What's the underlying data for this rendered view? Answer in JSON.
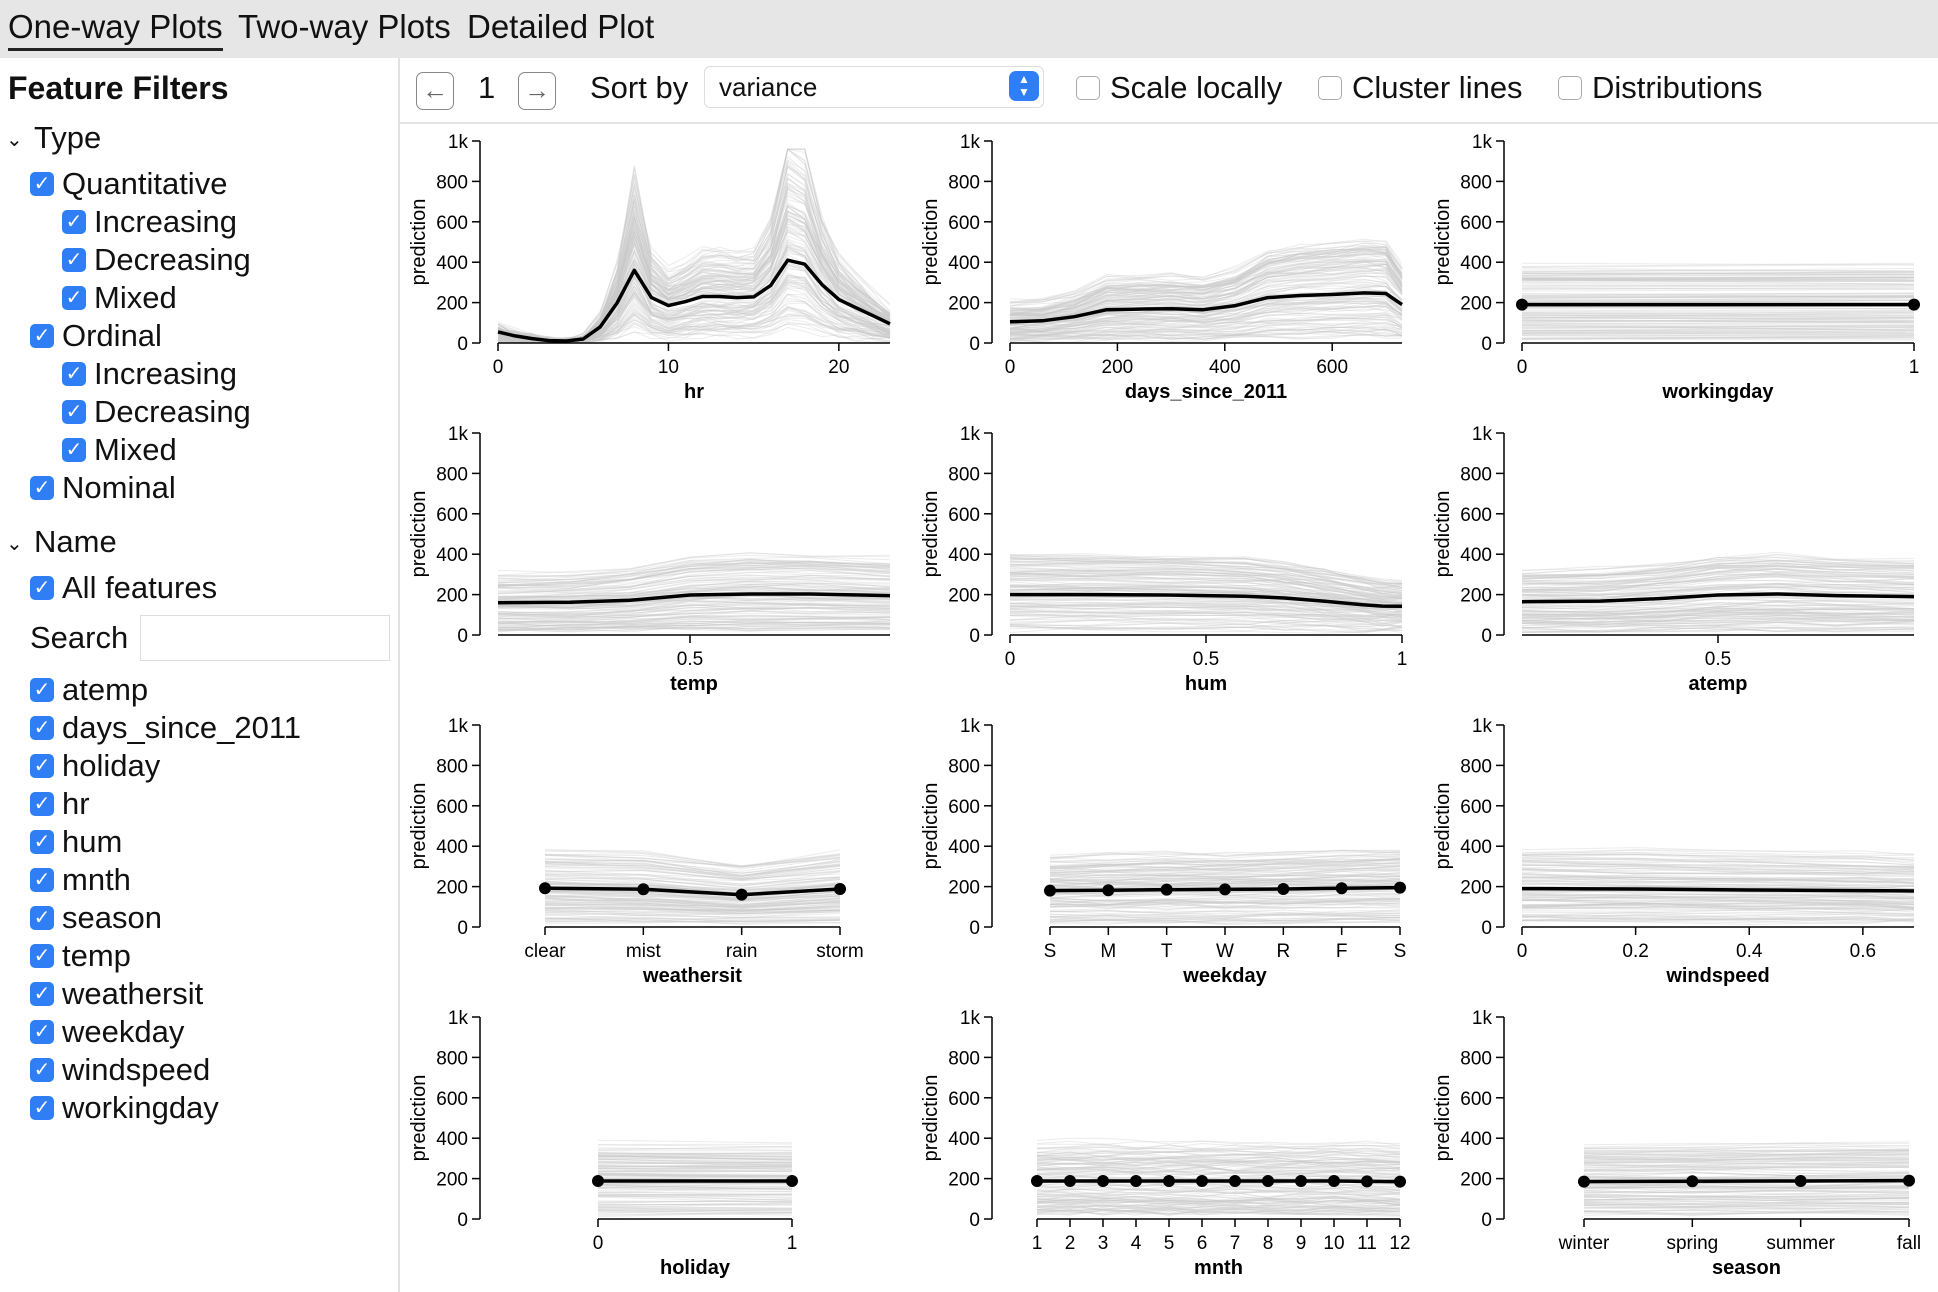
{
  "tabs": [
    {
      "label": "One-way Plots",
      "active": true
    },
    {
      "label": "Two-way Plots",
      "active": false
    },
    {
      "label": "Detailed Plot",
      "active": false
    }
  ],
  "sidebar": {
    "title": "Feature Filters",
    "type_section": {
      "label": "Type",
      "items": [
        {
          "label": "Quantitative",
          "level": 0,
          "checked": true
        },
        {
          "label": "Increasing",
          "level": 1,
          "checked": true
        },
        {
          "label": "Decreasing",
          "level": 1,
          "checked": true
        },
        {
          "label": "Mixed",
          "level": 1,
          "checked": true
        },
        {
          "label": "Ordinal",
          "level": 0,
          "checked": true
        },
        {
          "label": "Increasing",
          "level": 1,
          "checked": true
        },
        {
          "label": "Decreasing",
          "level": 1,
          "checked": true
        },
        {
          "label": "Mixed",
          "level": 1,
          "checked": true
        },
        {
          "label": "Nominal",
          "level": 0,
          "checked": true
        }
      ]
    },
    "name_section": {
      "label": "Name",
      "all_features_label": "All features",
      "search_label": "Search",
      "search_value": "",
      "features": [
        "atemp",
        "days_since_2011",
        "holiday",
        "hr",
        "hum",
        "mnth",
        "season",
        "temp",
        "weathersit",
        "weekday",
        "windspeed",
        "workingday"
      ]
    }
  },
  "toolbar": {
    "page": "1",
    "sort_label": "Sort by",
    "sort_value": "variance",
    "scale_locally": "Scale locally",
    "cluster_lines": "Cluster lines",
    "distributions": "Distributions"
  },
  "colors": {
    "accent": "#2f7ef6",
    "pdp_line": "#000000",
    "ice_lines": "#c8c8c8"
  },
  "chart_data": [
    {
      "type": "line",
      "feature": "hr",
      "xlabel": "hr",
      "ylabel": "prediction",
      "ylim": [
        0,
        1000
      ],
      "yticks": [
        "0",
        "200",
        "400",
        "600",
        "800",
        "1k"
      ],
      "xlim": [
        0,
        23
      ],
      "xticks": [
        0,
        10,
        20
      ],
      "x": [
        0,
        1,
        2,
        3,
        4,
        5,
        6,
        7,
        8,
        9,
        10,
        11,
        12,
        13,
        14,
        15,
        16,
        17,
        18,
        19,
        20,
        21,
        22,
        23
      ],
      "pdp": [
        55,
        35,
        22,
        12,
        10,
        20,
        80,
        200,
        360,
        225,
        185,
        205,
        230,
        230,
        225,
        228,
        285,
        410,
        390,
        290,
        215,
        175,
        135,
        95
      ],
      "markers": false
    },
    {
      "type": "line",
      "feature": "days_since_2011",
      "xlabel": "days_since_2011",
      "ylabel": "prediction",
      "ylim": [
        0,
        1000
      ],
      "yticks": [
        "0",
        "200",
        "400",
        "600",
        "800",
        "1k"
      ],
      "xlim": [
        0,
        730
      ],
      "xticks": [
        0,
        200,
        400,
        600
      ],
      "x": [
        0,
        60,
        120,
        180,
        240,
        300,
        360,
        420,
        480,
        540,
        600,
        660,
        700,
        730
      ],
      "pdp": [
        105,
        110,
        130,
        165,
        168,
        170,
        165,
        185,
        225,
        235,
        240,
        248,
        245,
        190
      ],
      "markers": false
    },
    {
      "type": "line",
      "feature": "workingday",
      "xlabel": "workingday",
      "ylabel": "prediction",
      "ylim": [
        0,
        1000
      ],
      "yticks": [
        "0",
        "200",
        "400",
        "600",
        "800",
        "1k"
      ],
      "categorical": true,
      "categories": [
        "0",
        "1"
      ],
      "x": [
        0,
        1
      ],
      "pdp": [
        190,
        190
      ],
      "markers": true
    },
    {
      "type": "line",
      "feature": "temp",
      "xlabel": "temp",
      "ylabel": "prediction",
      "ylim": [
        0,
        1000
      ],
      "yticks": [
        "0",
        "200",
        "400",
        "600",
        "800",
        "1k"
      ],
      "xlim": [
        0.02,
        1
      ],
      "xticks": [
        0.5
      ],
      "x": [
        0.02,
        0.2,
        0.35,
        0.5,
        0.65,
        0.8,
        1
      ],
      "pdp": [
        160,
        162,
        172,
        198,
        203,
        203,
        195
      ],
      "markers": false
    },
    {
      "type": "line",
      "feature": "hum",
      "xlabel": "hum",
      "ylabel": "prediction",
      "ylim": [
        0,
        1000
      ],
      "yticks": [
        "0",
        "200",
        "400",
        "600",
        "800",
        "1k"
      ],
      "xlim": [
        0,
        1
      ],
      "xticks": [
        0,
        0.5,
        1
      ],
      "x": [
        0,
        0.2,
        0.4,
        0.6,
        0.7,
        0.8,
        0.9,
        0.95,
        1
      ],
      "pdp": [
        200,
        200,
        198,
        192,
        183,
        168,
        150,
        143,
        142
      ],
      "markers": false
    },
    {
      "type": "line",
      "feature": "atemp",
      "xlabel": "atemp",
      "ylabel": "prediction",
      "ylim": [
        0,
        1000
      ],
      "yticks": [
        "0",
        "200",
        "400",
        "600",
        "800",
        "1k"
      ],
      "xlim": [
        0,
        1
      ],
      "xticks": [
        0.5
      ],
      "x": [
        0,
        0.2,
        0.35,
        0.5,
        0.65,
        0.8,
        1
      ],
      "pdp": [
        165,
        168,
        180,
        198,
        203,
        195,
        190
      ],
      "markers": false
    },
    {
      "type": "line",
      "feature": "weathersit",
      "xlabel": "weathersit",
      "ylabel": "prediction",
      "ylim": [
        0,
        1000
      ],
      "yticks": [
        "0",
        "200",
        "400",
        "600",
        "800",
        "1k"
      ],
      "categorical": true,
      "categories": [
        "clear",
        "mist",
        "rain",
        "storm"
      ],
      "x": [
        0,
        1,
        2,
        3
      ],
      "pdp": [
        192,
        187,
        160,
        188
      ],
      "markers": true
    },
    {
      "type": "line",
      "feature": "weekday",
      "xlabel": "weekday",
      "ylabel": "prediction",
      "ylim": [
        0,
        1000
      ],
      "yticks": [
        "0",
        "200",
        "400",
        "600",
        "800",
        "1k"
      ],
      "categorical": true,
      "categories": [
        "S",
        "M",
        "T",
        "W",
        "R",
        "F",
        "S"
      ],
      "x": [
        0,
        1,
        2,
        3,
        4,
        5,
        6
      ],
      "pdp": [
        180,
        182,
        185,
        186,
        188,
        192,
        195
      ],
      "markers": true
    },
    {
      "type": "line",
      "feature": "windspeed",
      "xlabel": "windspeed",
      "ylabel": "prediction",
      "ylim": [
        0,
        1000
      ],
      "yticks": [
        "0",
        "200",
        "400",
        "600",
        "800",
        "1k"
      ],
      "xlim": [
        0,
        0.69
      ],
      "xticks": [
        0,
        0.2,
        0.4,
        0.6
      ],
      "x": [
        0,
        0.2,
        0.4,
        0.6,
        0.69
      ],
      "pdp": [
        190,
        188,
        183,
        180,
        178
      ],
      "markers": false
    },
    {
      "type": "line",
      "feature": "holiday",
      "xlabel": "holiday",
      "ylabel": "prediction",
      "ylim": [
        0,
        1000
      ],
      "yticks": [
        "0",
        "200",
        "400",
        "600",
        "800",
        "1k"
      ],
      "categorical": true,
      "categories": [
        "0",
        "1"
      ],
      "x": [
        0,
        1
      ],
      "pdp": [
        188,
        188
      ],
      "markers": true
    },
    {
      "type": "line",
      "feature": "mnth",
      "xlabel": "mnth",
      "ylabel": "prediction",
      "ylim": [
        0,
        1000
      ],
      "yticks": [
        "0",
        "200",
        "400",
        "600",
        "800",
        "1k"
      ],
      "categorical": true,
      "categories": [
        "1",
        "2",
        "3",
        "4",
        "5",
        "6",
        "7",
        "8",
        "9",
        "10",
        "11",
        "12"
      ],
      "x": [
        0,
        1,
        2,
        3,
        4,
        5,
        6,
        7,
        8,
        9,
        10,
        11
      ],
      "pdp": [
        188,
        188,
        188,
        188,
        188,
        188,
        188,
        188,
        188,
        188,
        186,
        185
      ],
      "markers": true
    },
    {
      "type": "line",
      "feature": "season",
      "xlabel": "season",
      "ylabel": "prediction",
      "ylim": [
        0,
        1000
      ],
      "yticks": [
        "0",
        "200",
        "400",
        "600",
        "800",
        "1k"
      ],
      "categorical": true,
      "categories": [
        "winter",
        "spring",
        "summer",
        "fall"
      ],
      "x": [
        0,
        1,
        2,
        3
      ],
      "pdp": [
        185,
        187,
        188,
        190
      ],
      "markers": true
    }
  ]
}
